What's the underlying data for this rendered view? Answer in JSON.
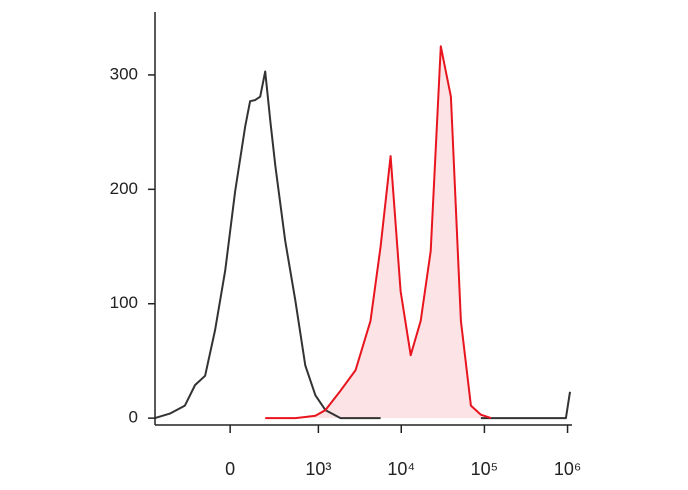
{
  "chart_data": {
    "type": "histogram-overlay",
    "xscale": "asinh",
    "xscale_cofactor": 175,
    "xlim": [
      -690,
      1070000
    ],
    "xticks": [
      0,
      {
        "value": 1000,
        "label": "10³"
      },
      {
        "value": 10000,
        "label": "10⁴"
      },
      {
        "value": 100000,
        "label": "10⁵"
      },
      {
        "value": 1000000,
        "label": "10⁶"
      }
    ],
    "ylim": [
      -6,
      355
    ],
    "yticks": [
      0,
      100,
      200,
      300
    ],
    "x": [
      -691,
      -448,
      -281,
      -198,
      -131,
      -75,
      -24,
      24,
      75,
      102,
      131,
      163,
      198,
      238,
      281,
      383,
      517,
      691,
      919,
      1218,
      1855,
      2820,
      4270,
      5640,
      7440,
      9830,
      12980,
      17150,
      22600,
      29900,
      39500,
      52100,
      68800,
      90800,
      120000,
      158000,
      276000,
      480000,
      955000,
      1070000
    ],
    "series": [
      {
        "color": "#333333",
        "values": [
          0,
          4,
          11,
          29,
          37,
          77,
          129,
          198,
          255,
          277,
          278,
          281,
          303,
          259,
          220,
          155,
          103,
          46,
          20,
          7,
          0,
          0,
          0,
          0,
          null,
          null,
          null,
          null,
          null,
          null,
          null,
          null,
          null,
          0,
          0,
          0,
          0,
          0,
          0,
          23
        ]
      },
      {
        "color": "#e8141e",
        "fill": "#fce4e6",
        "values": [
          null,
          null,
          null,
          null,
          null,
          null,
          null,
          null,
          null,
          null,
          null,
          null,
          0,
          0,
          0,
          0,
          0,
          1,
          2,
          7,
          24,
          42,
          85,
          150,
          229,
          111,
          55,
          85,
          146,
          325,
          281,
          85,
          11,
          3,
          0,
          null,
          null,
          null,
          null,
          null
        ]
      }
    ]
  }
}
